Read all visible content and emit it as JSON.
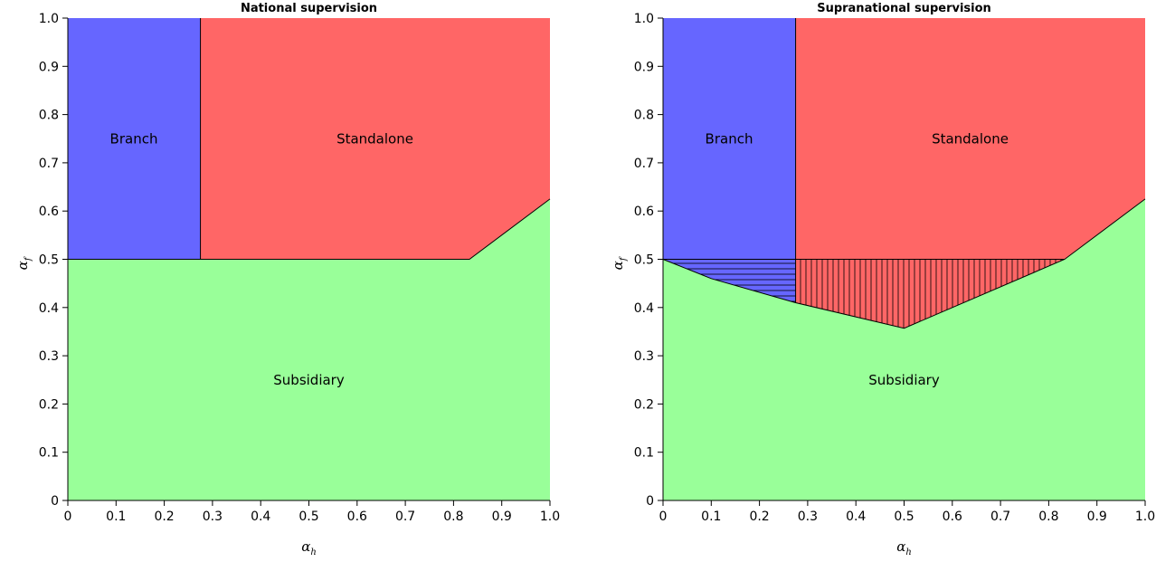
{
  "chart_data": [
    {
      "type": "area",
      "title": "National supervision",
      "xlabel": "α_h",
      "ylabel": "α_f",
      "xlim": [
        0,
        1
      ],
      "ylim": [
        0,
        1
      ],
      "xticks": [
        "0",
        "0.1",
        "0.2",
        "0.3",
        "0.4",
        "0.5",
        "0.6",
        "0.7",
        "0.8",
        "0.9",
        "1.0"
      ],
      "yticks": [
        "0",
        "0.1",
        "0.2",
        "0.3",
        "0.4",
        "0.5",
        "0.6",
        "0.7",
        "0.8",
        "0.9",
        "1.0"
      ],
      "regions": [
        {
          "name": "Subsidiary",
          "color": "#99ff99",
          "label_at": [
            0.5,
            0.25
          ],
          "polygon": [
            [
              0,
              0
            ],
            [
              1,
              0
            ],
            [
              1,
              0.625
            ],
            [
              0.833,
              0.5
            ],
            [
              0,
              0.5
            ]
          ]
        },
        {
          "name": "Branch",
          "color": "#6666ff",
          "label_at": [
            0.137,
            0.75
          ],
          "polygon": [
            [
              0,
              0.5
            ],
            [
              0.275,
              0.5
            ],
            [
              0.275,
              1
            ],
            [
              0,
              1
            ]
          ]
        },
        {
          "name": "Standalone",
          "color": "#ff6666",
          "label_at": [
            0.637,
            0.75
          ],
          "polygon": [
            [
              0.275,
              0.5
            ],
            [
              0.833,
              0.5
            ],
            [
              1,
              0.625
            ],
            [
              1,
              1
            ],
            [
              0.275,
              1
            ]
          ]
        }
      ],
      "hatched": [],
      "boundaries": [
        [
          [
            0,
            0.5
          ],
          [
            0.833,
            0.5
          ],
          [
            1,
            0.625
          ]
        ],
        [
          [
            0.275,
            0.5
          ],
          [
            0.275,
            1
          ]
        ]
      ]
    },
    {
      "type": "area",
      "title": "Supranational supervision",
      "xlabel": "α_h",
      "ylabel": "α_f",
      "xlim": [
        0,
        1
      ],
      "ylim": [
        0,
        1
      ],
      "xticks": [
        "0",
        "0.1",
        "0.2",
        "0.3",
        "0.4",
        "0.5",
        "0.6",
        "0.7",
        "0.8",
        "0.9",
        "1.0"
      ],
      "yticks": [
        "0",
        "0.1",
        "0.2",
        "0.3",
        "0.4",
        "0.5",
        "0.6",
        "0.7",
        "0.8",
        "0.9",
        "1.0"
      ],
      "regions": [
        {
          "name": "Subsidiary",
          "color": "#99ff99",
          "label_at": [
            0.5,
            0.25
          ],
          "polygon": [
            [
              0,
              0
            ],
            [
              1,
              0
            ],
            [
              1,
              0.625
            ],
            [
              0.833,
              0.5
            ],
            [
              0.5,
              0.357
            ],
            [
              0.275,
              0.41
            ],
            [
              0.1,
              0.46
            ],
            [
              0,
              0.5
            ]
          ]
        },
        {
          "name": "Branch",
          "color": "#6666ff",
          "label_at": [
            0.137,
            0.75
          ],
          "polygon": [
            [
              0,
              0.5
            ],
            [
              0.1,
              0.46
            ],
            [
              0.275,
              0.41
            ],
            [
              0.275,
              1
            ],
            [
              0,
              1
            ]
          ]
        },
        {
          "name": "Standalone",
          "color": "#ff6666",
          "label_at": [
            0.637,
            0.75
          ],
          "polygon": [
            [
              0.275,
              0.41
            ],
            [
              0.5,
              0.357
            ],
            [
              0.833,
              0.5
            ],
            [
              1,
              0.625
            ],
            [
              1,
              1
            ],
            [
              0.275,
              1
            ]
          ]
        }
      ],
      "hatched": [
        {
          "direction": "horizontal",
          "polygon": [
            [
              0,
              0.5
            ],
            [
              0.275,
              0.5
            ],
            [
              0.275,
              0.41
            ],
            [
              0.1,
              0.46
            ]
          ]
        },
        {
          "direction": "vertical",
          "polygon": [
            [
              0.275,
              0.5
            ],
            [
              0.833,
              0.5
            ],
            [
              0.5,
              0.357
            ],
            [
              0.275,
              0.41
            ]
          ]
        }
      ],
      "boundaries": [
        [
          [
            0,
            0.5
          ],
          [
            0.1,
            0.46
          ],
          [
            0.275,
            0.41
          ],
          [
            0.5,
            0.357
          ],
          [
            0.833,
            0.5
          ],
          [
            1,
            0.625
          ]
        ],
        [
          [
            0.275,
            0.41
          ],
          [
            0.275,
            1
          ]
        ],
        [
          [
            0,
            0.5
          ],
          [
            0.833,
            0.5
          ]
        ]
      ]
    }
  ]
}
